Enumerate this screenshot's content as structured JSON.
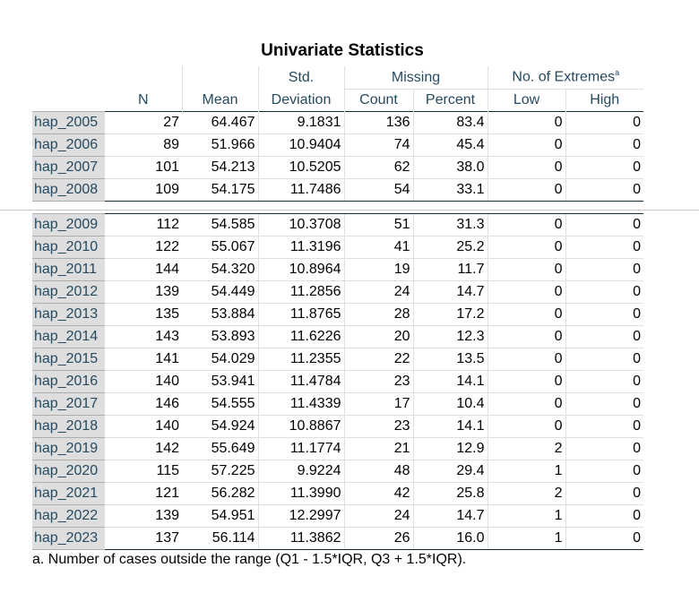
{
  "title": "Univariate Statistics",
  "headers": {
    "n": "N",
    "mean": "Mean",
    "std_line1": "Std.",
    "std_line2": "Deviation",
    "missing": "Missing",
    "count": "Count",
    "percent": "Percent",
    "extremes": "No. of Extremes",
    "extremes_mark": "a",
    "low": "Low",
    "high": "High"
  },
  "rows_top": [
    {
      "label": "hap_2005",
      "n": "27",
      "mean": "64.467",
      "std": "9.1831",
      "count": "136",
      "percent": "83.4",
      "low": "0",
      "high": "0"
    },
    {
      "label": "hap_2006",
      "n": "89",
      "mean": "51.966",
      "std": "10.9404",
      "count": "74",
      "percent": "45.4",
      "low": "0",
      "high": "0"
    },
    {
      "label": "hap_2007",
      "n": "101",
      "mean": "54.213",
      "std": "10.5205",
      "count": "62",
      "percent": "38.0",
      "low": "0",
      "high": "0"
    },
    {
      "label": "hap_2008",
      "n": "109",
      "mean": "54.175",
      "std": "11.7486",
      "count": "54",
      "percent": "33.1",
      "low": "0",
      "high": "0"
    }
  ],
  "rows_bottom": [
    {
      "label": "hap_2009",
      "n": "112",
      "mean": "54.585",
      "std": "10.3708",
      "count": "51",
      "percent": "31.3",
      "low": "0",
      "high": "0"
    },
    {
      "label": "hap_2010",
      "n": "122",
      "mean": "55.067",
      "std": "11.3196",
      "count": "41",
      "percent": "25.2",
      "low": "0",
      "high": "0"
    },
    {
      "label": "hap_2011",
      "n": "144",
      "mean": "54.320",
      "std": "10.8964",
      "count": "19",
      "percent": "11.7",
      "low": "0",
      "high": "0"
    },
    {
      "label": "hap_2012",
      "n": "139",
      "mean": "54.449",
      "std": "11.2856",
      "count": "24",
      "percent": "14.7",
      "low": "0",
      "high": "0"
    },
    {
      "label": "hap_2013",
      "n": "135",
      "mean": "53.884",
      "std": "11.8765",
      "count": "28",
      "percent": "17.2",
      "low": "0",
      "high": "0"
    },
    {
      "label": "hap_2014",
      "n": "143",
      "mean": "53.893",
      "std": "11.6226",
      "count": "20",
      "percent": "12.3",
      "low": "0",
      "high": "0"
    },
    {
      "label": "hap_2015",
      "n": "141",
      "mean": "54.029",
      "std": "11.2355",
      "count": "22",
      "percent": "13.5",
      "low": "0",
      "high": "0"
    },
    {
      "label": "hap_2016",
      "n": "140",
      "mean": "53.941",
      "std": "11.4784",
      "count": "23",
      "percent": "14.1",
      "low": "0",
      "high": "0"
    },
    {
      "label": "hap_2017",
      "n": "146",
      "mean": "54.555",
      "std": "11.4339",
      "count": "17",
      "percent": "10.4",
      "low": "0",
      "high": "0"
    },
    {
      "label": "hap_2018",
      "n": "140",
      "mean": "54.924",
      "std": "10.8867",
      "count": "23",
      "percent": "14.1",
      "low": "0",
      "high": "0"
    },
    {
      "label": "hap_2019",
      "n": "142",
      "mean": "55.649",
      "std": "11.1774",
      "count": "21",
      "percent": "12.9",
      "low": "2",
      "high": "0"
    },
    {
      "label": "hap_2020",
      "n": "115",
      "mean": "57.225",
      "std": "9.9224",
      "count": "48",
      "percent": "29.4",
      "low": "1",
      "high": "0"
    },
    {
      "label": "hap_2021",
      "n": "121",
      "mean": "56.282",
      "std": "11.3990",
      "count": "42",
      "percent": "25.8",
      "low": "2",
      "high": "0"
    },
    {
      "label": "hap_2022",
      "n": "139",
      "mean": "54.951",
      "std": "12.2997",
      "count": "24",
      "percent": "14.7",
      "low": "1",
      "high": "0"
    },
    {
      "label": "hap_2023",
      "n": "137",
      "mean": "56.114",
      "std": "11.3862",
      "count": "26",
      "percent": "16.0",
      "low": "1",
      "high": "0"
    }
  ],
  "footnote": "a. Number of cases outside the range (Q1 - 1.5*IQR, Q3 + 1.5*IQR)."
}
